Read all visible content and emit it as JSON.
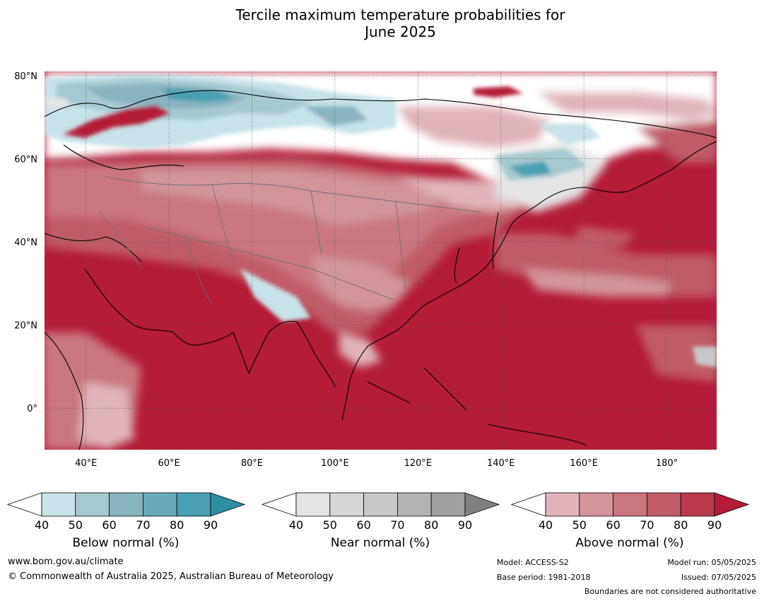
{
  "title_line1": "Tercile maximum temperature probabilities for",
  "title_line2": "June 2025",
  "map": {
    "lat_labels": [
      {
        "value": 80,
        "text": "80°N"
      },
      {
        "value": 60,
        "text": "60°N"
      },
      {
        "value": 40,
        "text": "40°N"
      },
      {
        "value": 20,
        "text": "20°N"
      },
      {
        "value": 0,
        "text": "0°"
      }
    ],
    "lon_labels": [
      {
        "value": 40,
        "text": "40°E"
      },
      {
        "value": 60,
        "text": "60°E"
      },
      {
        "value": 80,
        "text": "80°E"
      },
      {
        "value": 100,
        "text": "100°E"
      },
      {
        "value": 120,
        "text": "120°E"
      },
      {
        "value": 140,
        "text": "140°E"
      },
      {
        "value": 160,
        "text": "160°E"
      },
      {
        "value": 180,
        "text": "180°"
      }
    ],
    "lon_range": [
      30,
      192
    ],
    "lat_range": [
      -10,
      81
    ]
  },
  "colorbars": [
    {
      "name": "below",
      "label": "Below normal (%)",
      "ticks": [
        "40",
        "50",
        "60",
        "70",
        "80",
        "90"
      ],
      "colors": [
        "#c7e2e8",
        "#a6c9cf",
        "#88b4bf",
        "#6aaab7",
        "#4aa0b0",
        "#2e8fa0"
      ]
    },
    {
      "name": "near",
      "label": "Near normal (%)",
      "ticks": [
        "40",
        "50",
        "60",
        "70",
        "80",
        "90"
      ],
      "colors": [
        "#e4e4e4",
        "#d6d6d6",
        "#c8c8c8",
        "#b3b3b3",
        "#a0a0a0",
        "#808080"
      ]
    },
    {
      "name": "above",
      "label": "Above normal (%)",
      "ticks": [
        "40",
        "50",
        "60",
        "70",
        "80",
        "90"
      ],
      "colors": [
        "#e0b4ba",
        "#d3949c",
        "#c97680",
        "#c05b68",
        "#b93a4c",
        "#b41c38"
      ]
    }
  ],
  "footer": {
    "website": "www.bom.gov.au/climate",
    "copyright": "© Commonwealth of Australia 2025, Australian Bureau of Meteorology",
    "model": "Model: ACCESS-S2",
    "base_period": "Base period: 1981-2018",
    "model_run": "Model run: 05/05/2025",
    "issued": "Issued: 07/05/2025",
    "boundaries_note": "Boundaries are not considered authoritative"
  }
}
